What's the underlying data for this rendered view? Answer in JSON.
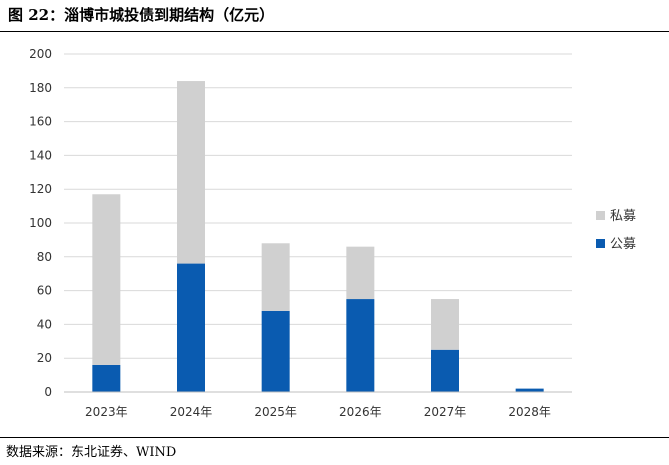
{
  "header": {
    "title": "图 22：淄博市城投债到期结构（亿元）"
  },
  "footer": {
    "source": "数据来源：东北证券、WIND"
  },
  "chart_data": {
    "type": "bar",
    "stacked": true,
    "categories": [
      "2023年",
      "2024年",
      "2025年",
      "2026年",
      "2027年",
      "2028年"
    ],
    "series": [
      {
        "name": "公募",
        "values": [
          16,
          76,
          48,
          55,
          25,
          2
        ],
        "color": "#0a5bb0"
      },
      {
        "name": "私募",
        "values": [
          101,
          108,
          40,
          31,
          30,
          0
        ],
        "color": "#d0d0d0"
      }
    ],
    "ylim": [
      0,
      200
    ],
    "yticks": [
      0,
      20,
      40,
      60,
      80,
      100,
      120,
      140,
      160,
      180,
      200
    ],
    "grid": true,
    "legend_position": "right",
    "legend_order": [
      "私募",
      "公募"
    ]
  }
}
